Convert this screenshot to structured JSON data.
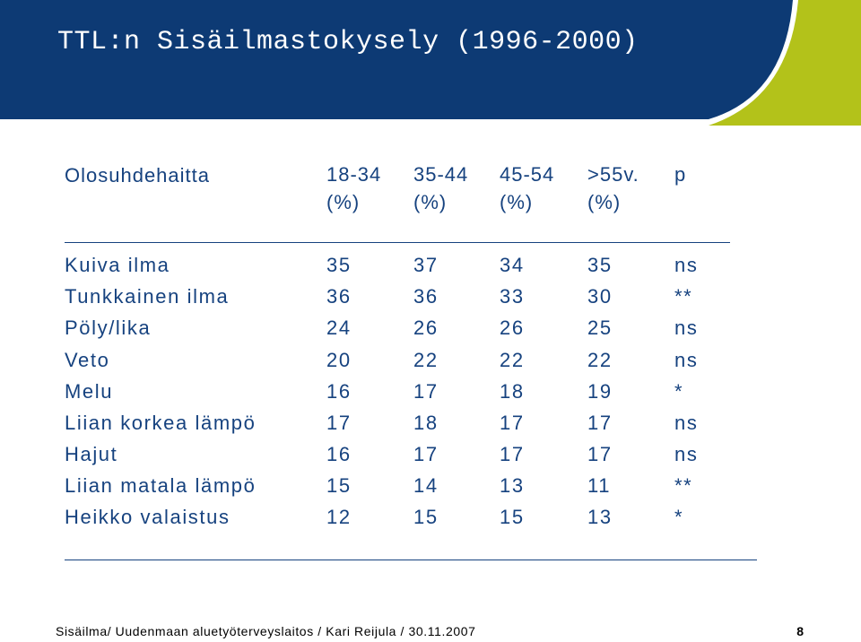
{
  "slide": {
    "title": "TTL:n Sisäilmastokysely (1996-2000)"
  },
  "table": {
    "row_header": "Olosuhdehaitta",
    "columns": [
      {
        "line1": "18-34",
        "line2": "(%)"
      },
      {
        "line1": "35-44",
        "line2": "(%)"
      },
      {
        "line1": "45-54",
        "line2": "(%)"
      },
      {
        "line1": ">55v.",
        "line2": "(%)"
      },
      {
        "line1": "p",
        "line2": ""
      }
    ],
    "rows": [
      {
        "label": "Kuiva ilma",
        "values": [
          "35",
          "37",
          "34",
          "35",
          "ns"
        ]
      },
      {
        "label": "Tunkkainen ilma",
        "values": [
          "36",
          "36",
          "33",
          "30",
          "**"
        ]
      },
      {
        "label": "Pöly/lika",
        "values": [
          "24",
          "26",
          "26",
          "25",
          "ns"
        ]
      },
      {
        "label": "Veto",
        "values": [
          "20",
          "22",
          "22",
          "22",
          "ns"
        ]
      },
      {
        "label": "Melu",
        "values": [
          "16",
          "17",
          "18",
          "19",
          "*"
        ]
      },
      {
        "label": "Liian korkea lämpö",
        "values": [
          "17",
          "18",
          "17",
          "17",
          "ns"
        ]
      },
      {
        "label": "Hajut",
        "values": [
          "16",
          "17",
          "17",
          "17",
          "ns"
        ]
      },
      {
        "label": "Liian matala lämpö",
        "values": [
          "15",
          "14",
          "13",
          "11",
          "**"
        ]
      },
      {
        "label": "Heikko valaistus",
        "values": [
          "12",
          "15",
          "15",
          "13",
          "*"
        ]
      }
    ]
  },
  "footer": {
    "text": "Sisäilma/ Uudenmaan aluetyöterveyslaitos / Kari Reijula / 30.11.2007",
    "page_number": "8"
  },
  "colors": {
    "header_navy": "#0d3a74",
    "accent_green": "#b3c21a",
    "text_blue": "#16427f"
  }
}
